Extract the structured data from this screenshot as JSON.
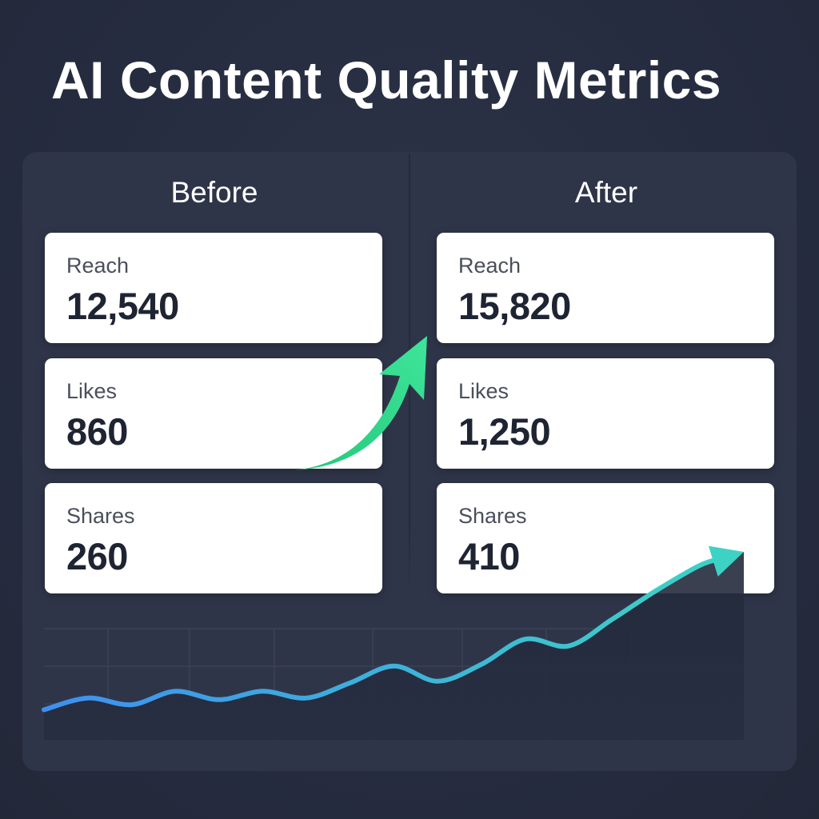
{
  "title": "AI Content Quality Metrics",
  "columns": {
    "before": {
      "heading": "Before",
      "metrics": [
        {
          "label": "Reach",
          "value": "12,540"
        },
        {
          "label": "Likes",
          "value": "860"
        },
        {
          "label": "Shares",
          "value": "260"
        }
      ]
    },
    "after": {
      "heading": "After",
      "metrics": [
        {
          "label": "Reach",
          "value": "15,820"
        },
        {
          "label": "Likes",
          "value": "1,250"
        },
        {
          "label": "Shares",
          "value": "410"
        }
      ]
    }
  },
  "colors": {
    "background": "#262c40",
    "panel": "#2f3549",
    "card": "#ffffff",
    "accent_green": "#2fd98a",
    "line_start": "#3f8ff0",
    "line_end": "#3dd3c4"
  },
  "chart_data": {
    "type": "line",
    "title": "",
    "xlabel": "",
    "ylabel": "",
    "grid": true,
    "x": [
      0,
      1,
      2,
      3,
      4,
      5,
      6,
      7,
      8,
      9,
      10,
      11,
      12,
      13,
      14,
      15,
      16
    ],
    "ylim": [
      0,
      100
    ],
    "series": [
      {
        "values": [
          6,
          13,
          9,
          17,
          12,
          17,
          13,
          22,
          32,
          23,
          33,
          48,
          44,
          60,
          77,
          92,
          100
        ]
      }
    ]
  }
}
